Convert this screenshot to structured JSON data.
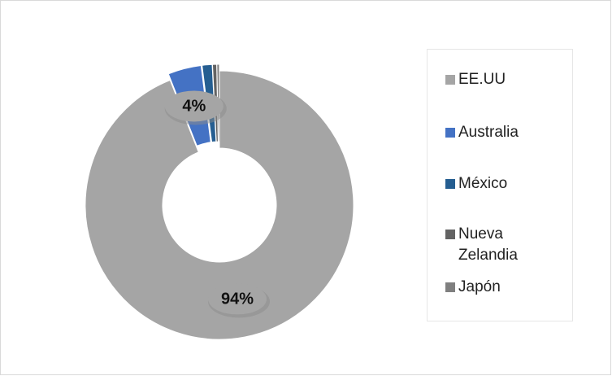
{
  "chart_data": {
    "type": "donut",
    "categories": [
      "EE.UU",
      "Australia",
      "México",
      "Nueva Zelandia",
      "Japón"
    ],
    "values": [
      94,
      4,
      1.2,
      0.5,
      0.3
    ],
    "value_labels": [
      "94%",
      "4%",
      null,
      null,
      null
    ],
    "colors": [
      "#a5a5a5",
      "#4472c4",
      "#255e91",
      "#636363",
      "#7f7f7f"
    ],
    "legend": "right"
  }
}
